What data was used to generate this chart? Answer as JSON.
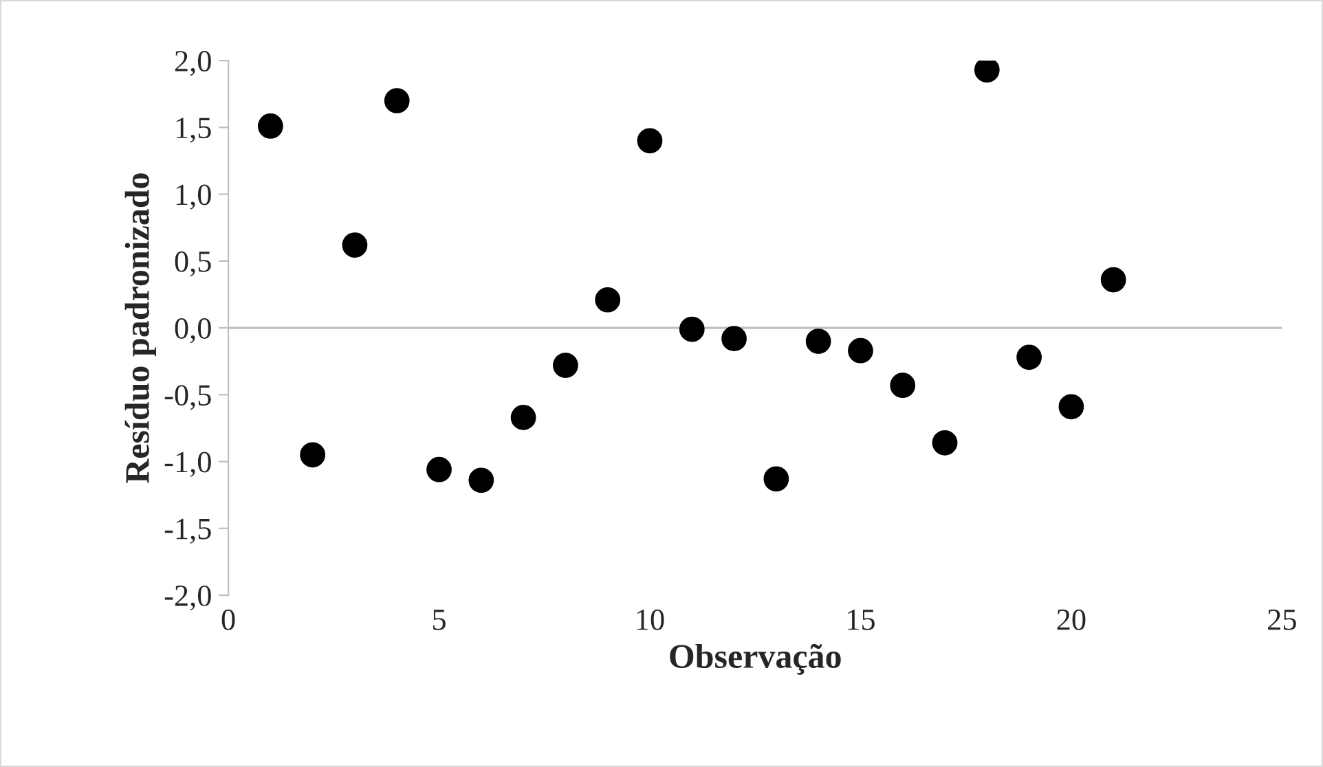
{
  "chart_data": {
    "type": "scatter",
    "xlabel": "Observação",
    "ylabel": "Resíduo padronizado",
    "x": [
      1,
      2,
      3,
      4,
      5,
      6,
      7,
      8,
      9,
      10,
      11,
      12,
      13,
      14,
      15,
      16,
      17,
      18,
      19,
      20,
      21
    ],
    "series": [
      {
        "color": "#000000",
        "values": [
          1.51,
          -0.95,
          0.62,
          1.7,
          -1.06,
          -1.14,
          -0.67,
          -0.28,
          0.21,
          1.4,
          -0.01,
          -0.08,
          -1.13,
          -0.1,
          -0.17,
          -0.43,
          -0.86,
          1.93,
          -0.22,
          -0.59,
          0.36
        ]
      }
    ],
    "marker": "circle",
    "grid": false,
    "legend": false,
    "xlim": [
      0,
      25
    ],
    "xticks": [
      0,
      5,
      10,
      15,
      20,
      25
    ],
    "ylim": [
      -2,
      2
    ],
    "yticks": [
      {
        "value": -2,
        "label": "-2,0"
      },
      {
        "value": -1.5,
        "label": "-1,5"
      },
      {
        "value": -1,
        "label": "-1,0"
      },
      {
        "value": -0.5,
        "label": "-0,5"
      },
      {
        "value": 0,
        "label": "0,0"
      },
      {
        "value": 0.5,
        "label": "0,5"
      },
      {
        "value": 1,
        "label": "1,0"
      },
      {
        "value": 1.5,
        "label": "1,5"
      },
      {
        "value": 2,
        "label": "2,0"
      }
    ],
    "ref_lines": [
      {
        "axis": "y",
        "value": 0,
        "color": "#bfbfbf",
        "line_style": "solid"
      }
    ]
  }
}
